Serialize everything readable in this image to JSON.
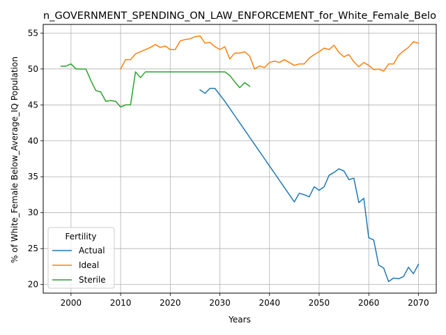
{
  "chart_data": {
    "type": "line",
    "title": "n_GOVERNMENT_SPENDING_ON_LAW_ENFORCEMENT_for_White_Female_Belo",
    "xlabel": "Years",
    "ylabel": "% of White_Female Below_Average_IQ Population",
    "xlim": [
      1994.4,
      2073.6
    ],
    "ylim": [
      18.8,
      56.2
    ],
    "xticks": [
      2000,
      2010,
      2020,
      2030,
      2040,
      2050,
      2060,
      2070
    ],
    "yticks": [
      20,
      25,
      30,
      35,
      40,
      45,
      50,
      55
    ],
    "grid": true,
    "legend": {
      "title": "Fertility",
      "placement": "lower-left"
    },
    "series": [
      {
        "name": "Actual",
        "color": "#1f77b4",
        "x": [
          2026,
          2027,
          2028,
          2029,
          2030,
          2031,
          2032,
          2033,
          2034,
          2035,
          2036,
          2037,
          2038,
          2039,
          2040,
          2041,
          2042,
          2043,
          2044,
          2045,
          2046,
          2047,
          2048,
          2049,
          2050,
          2051,
          2052,
          2053,
          2054,
          2055,
          2056,
          2057,
          2058,
          2059,
          2060,
          2061,
          2062,
          2063,
          2064,
          2065,
          2066,
          2067,
          2068,
          2069,
          2070
        ],
        "y": [
          47.1,
          46.6,
          47.3,
          47.3,
          46.4,
          45.5,
          44.5,
          43.5,
          42.5,
          41.5,
          40.5,
          39.5,
          38.5,
          37.5,
          36.5,
          35.5,
          34.5,
          33.5,
          32.5,
          31.5,
          32.7,
          32.5,
          32.2,
          33.6,
          33.1,
          33.6,
          35.2,
          35.6,
          36.1,
          35.8,
          34.6,
          34.8,
          31.4,
          32.0,
          26.5,
          26.2,
          22.7,
          22.3,
          20.4,
          20.9,
          20.8,
          21.1,
          22.4,
          21.5,
          22.8
        ]
      },
      {
        "name": "Ideal",
        "color": "#ff7f0e",
        "x": [
          2010,
          2011,
          2012,
          2013,
          2014,
          2015,
          2016,
          2017,
          2018,
          2019,
          2020,
          2021,
          2022,
          2023,
          2024,
          2025,
          2026,
          2027,
          2028,
          2029,
          2030,
          2031,
          2032,
          2033,
          2034,
          2035,
          2036,
          2037,
          2038,
          2039,
          2040,
          2041,
          2042,
          2043,
          2044,
          2045,
          2046,
          2047,
          2048,
          2049,
          2050,
          2051,
          2052,
          2053,
          2054,
          2055,
          2056,
          2057,
          2058,
          2059,
          2060,
          2061,
          2062,
          2063,
          2064,
          2065,
          2066,
          2067,
          2068,
          2069,
          2070
        ],
        "y": [
          50.0,
          51.3,
          51.3,
          52.1,
          52.4,
          52.7,
          53.0,
          53.4,
          53.0,
          53.2,
          52.7,
          52.7,
          53.9,
          54.1,
          54.2,
          54.5,
          54.6,
          53.6,
          53.7,
          53.1,
          52.7,
          53.1,
          51.4,
          52.2,
          52.2,
          52.4,
          51.8,
          50.0,
          50.4,
          50.2,
          50.9,
          51.1,
          50.9,
          51.3,
          50.9,
          50.5,
          50.7,
          50.7,
          51.5,
          52.0,
          52.4,
          52.9,
          52.7,
          53.3,
          52.3,
          51.7,
          52.0,
          51.0,
          50.3,
          50.9,
          50.5,
          49.9,
          50.0,
          49.7,
          50.7,
          50.7,
          51.9,
          52.5,
          53.0,
          53.8,
          53.6
        ]
      },
      {
        "name": "Sterile",
        "color": "#2ca02c",
        "x": [
          1998,
          1999,
          2000,
          2001,
          2002,
          2003,
          2004,
          2005,
          2006,
          2007,
          2008,
          2009,
          2010,
          2011,
          2012,
          2013,
          2014,
          2015,
          2016,
          2017,
          2018,
          2019,
          2020,
          2021,
          2022,
          2023,
          2024,
          2025,
          2026,
          2027,
          2028,
          2029,
          2030,
          2031,
          2032,
          2033,
          2034,
          2035,
          2036
        ],
        "y": [
          50.4,
          50.4,
          50.7,
          50.0,
          50.0,
          50.0,
          48.4,
          47.0,
          46.8,
          45.5,
          45.6,
          45.5,
          44.7,
          45.0,
          45.0,
          49.6,
          48.8,
          49.6,
          49.6,
          49.6,
          49.6,
          49.6,
          49.6,
          49.6,
          49.6,
          49.6,
          49.6,
          49.6,
          49.6,
          49.6,
          49.6,
          49.6,
          49.6,
          49.6,
          49.1,
          48.2,
          47.4,
          48.1,
          47.6
        ]
      }
    ]
  }
}
